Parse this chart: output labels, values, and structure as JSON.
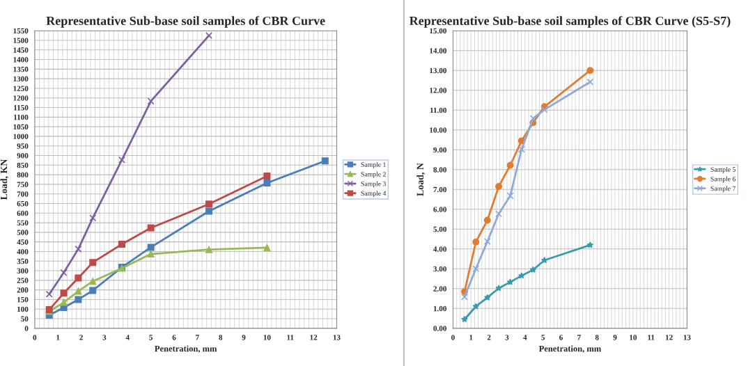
{
  "chart_data": [
    {
      "type": "line",
      "title": "Representative Sub-base soil samples of CBR Curve",
      "xlabel": "Penetration, mm",
      "ylabel": "Load, KN",
      "x": [
        0.625,
        1.25,
        1.875,
        2.5,
        3.75,
        5,
        7.5,
        10,
        12.5
      ],
      "series": [
        {
          "name": "Sample 1",
          "color": "#4a7ebb",
          "marker": "square",
          "values": [
            68,
            108,
            150,
            197,
            318,
            422,
            610,
            757,
            872
          ]
        },
        {
          "name": "Sample 2",
          "color": "#98b954",
          "marker": "triangle",
          "values": [
            88,
            135,
            193,
            245,
            313,
            387,
            410,
            420,
            null
          ]
        },
        {
          "name": "Sample 3",
          "color": "#7d60a0",
          "marker": "cross",
          "values": [
            178,
            290,
            413,
            575,
            877,
            1183,
            1525,
            null,
            null
          ]
        },
        {
          "name": "Sample 4",
          "color": "#be4b48",
          "marker": "square",
          "values": [
            97,
            183,
            262,
            343,
            438,
            523,
            647,
            793,
            null
          ]
        }
      ],
      "xlim": [
        0,
        13
      ],
      "xticks": [
        0,
        1,
        2,
        3,
        4,
        5,
        6,
        7,
        8,
        9,
        10,
        11,
        12,
        13
      ],
      "ylim": [
        0,
        1550
      ],
      "yticks": [
        0,
        50,
        100,
        150,
        200,
        250,
        300,
        350,
        400,
        450,
        500,
        550,
        600,
        650,
        700,
        750,
        800,
        850,
        900,
        950,
        1000,
        1050,
        1100,
        1150,
        1200,
        1250,
        1300,
        1350,
        1400,
        1450,
        1500,
        1550
      ],
      "grid": true,
      "legend": "right",
      "line_style": "solid"
    },
    {
      "type": "line",
      "title": "Representative Sub-base soil samples of CBR Curve (S5-S7)",
      "xlabel": "Penetration, mm",
      "ylabel": "Load, N",
      "x": [
        0.64,
        1.27,
        1.91,
        2.54,
        3.18,
        3.81,
        4.45,
        5.08,
        7.62
      ],
      "series": [
        {
          "name": "Sample 5",
          "color": "#3a9aae",
          "marker": "star",
          "values": [
            0.45,
            1.1,
            1.55,
            2.02,
            2.33,
            2.65,
            2.95,
            3.43,
            4.2
          ]
        },
        {
          "name": "Sample 6",
          "color": "#e07d32",
          "marker": "circle",
          "values": [
            1.85,
            4.35,
            5.45,
            7.15,
            8.22,
            9.45,
            10.37,
            11.17,
            13.0
          ]
        },
        {
          "name": "Sample 7",
          "color": "#8eaad8",
          "marker": "cross",
          "values": [
            1.58,
            3.0,
            4.38,
            5.77,
            6.68,
            9.02,
            10.58,
            11.02,
            12.42
          ]
        }
      ],
      "xlim": [
        0,
        13
      ],
      "xticks": [
        0,
        1,
        2,
        3,
        4,
        5,
        6,
        7,
        8,
        9,
        10,
        11,
        12,
        13
      ],
      "ylim": [
        0,
        15
      ],
      "yticks": [
        {
          "value": 0,
          "label": "0.00"
        },
        {
          "value": 1,
          "label": "1.00"
        },
        {
          "value": 2,
          "label": "2.00"
        },
        {
          "value": 3,
          "label": "3.00"
        },
        {
          "value": 4,
          "label": "4.00"
        },
        {
          "value": 5,
          "label": "5.00"
        },
        {
          "value": 6,
          "label": "6.00"
        },
        {
          "value": 7,
          "label": "7.00"
        },
        {
          "value": 8,
          "label": "8.00"
        },
        {
          "value": 9,
          "label": "9.00"
        },
        {
          "value": 10,
          "label": "10.00"
        },
        {
          "value": 11,
          "label": "11.00"
        },
        {
          "value": 12,
          "label": "12.00"
        },
        {
          "value": 13,
          "label": "13.00"
        },
        {
          "value": 14,
          "label": "14.00"
        },
        {
          "value": 15,
          "label": "15.00"
        }
      ],
      "grid": true,
      "legend": "right",
      "line_style": "solid"
    }
  ]
}
